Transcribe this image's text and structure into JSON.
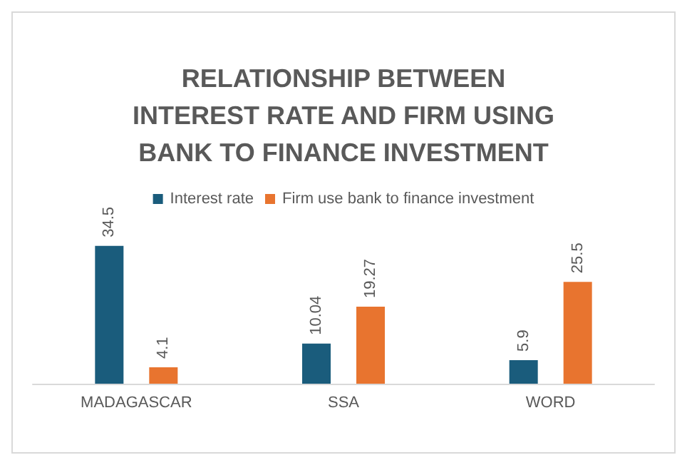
{
  "chart_data": {
    "type": "bar",
    "title": "RELATIONSHIP BETWEEN\nINTEREST RATE AND FIRM USING\nBANK TO FINANCE INVESTMENT",
    "categories": [
      "MADAGASCAR",
      "SSA",
      "WORD"
    ],
    "series": [
      {
        "name": "Interest rate",
        "color": "#1a5c7c",
        "values": [
          34.5,
          10.04,
          5.9
        ]
      },
      {
        "name": "Firm use bank to finance investment",
        "color": "#e8742f",
        "values": [
          4.1,
          19.27,
          25.5
        ]
      }
    ],
    "data_labels": true,
    "legend": "top",
    "grid": false
  }
}
